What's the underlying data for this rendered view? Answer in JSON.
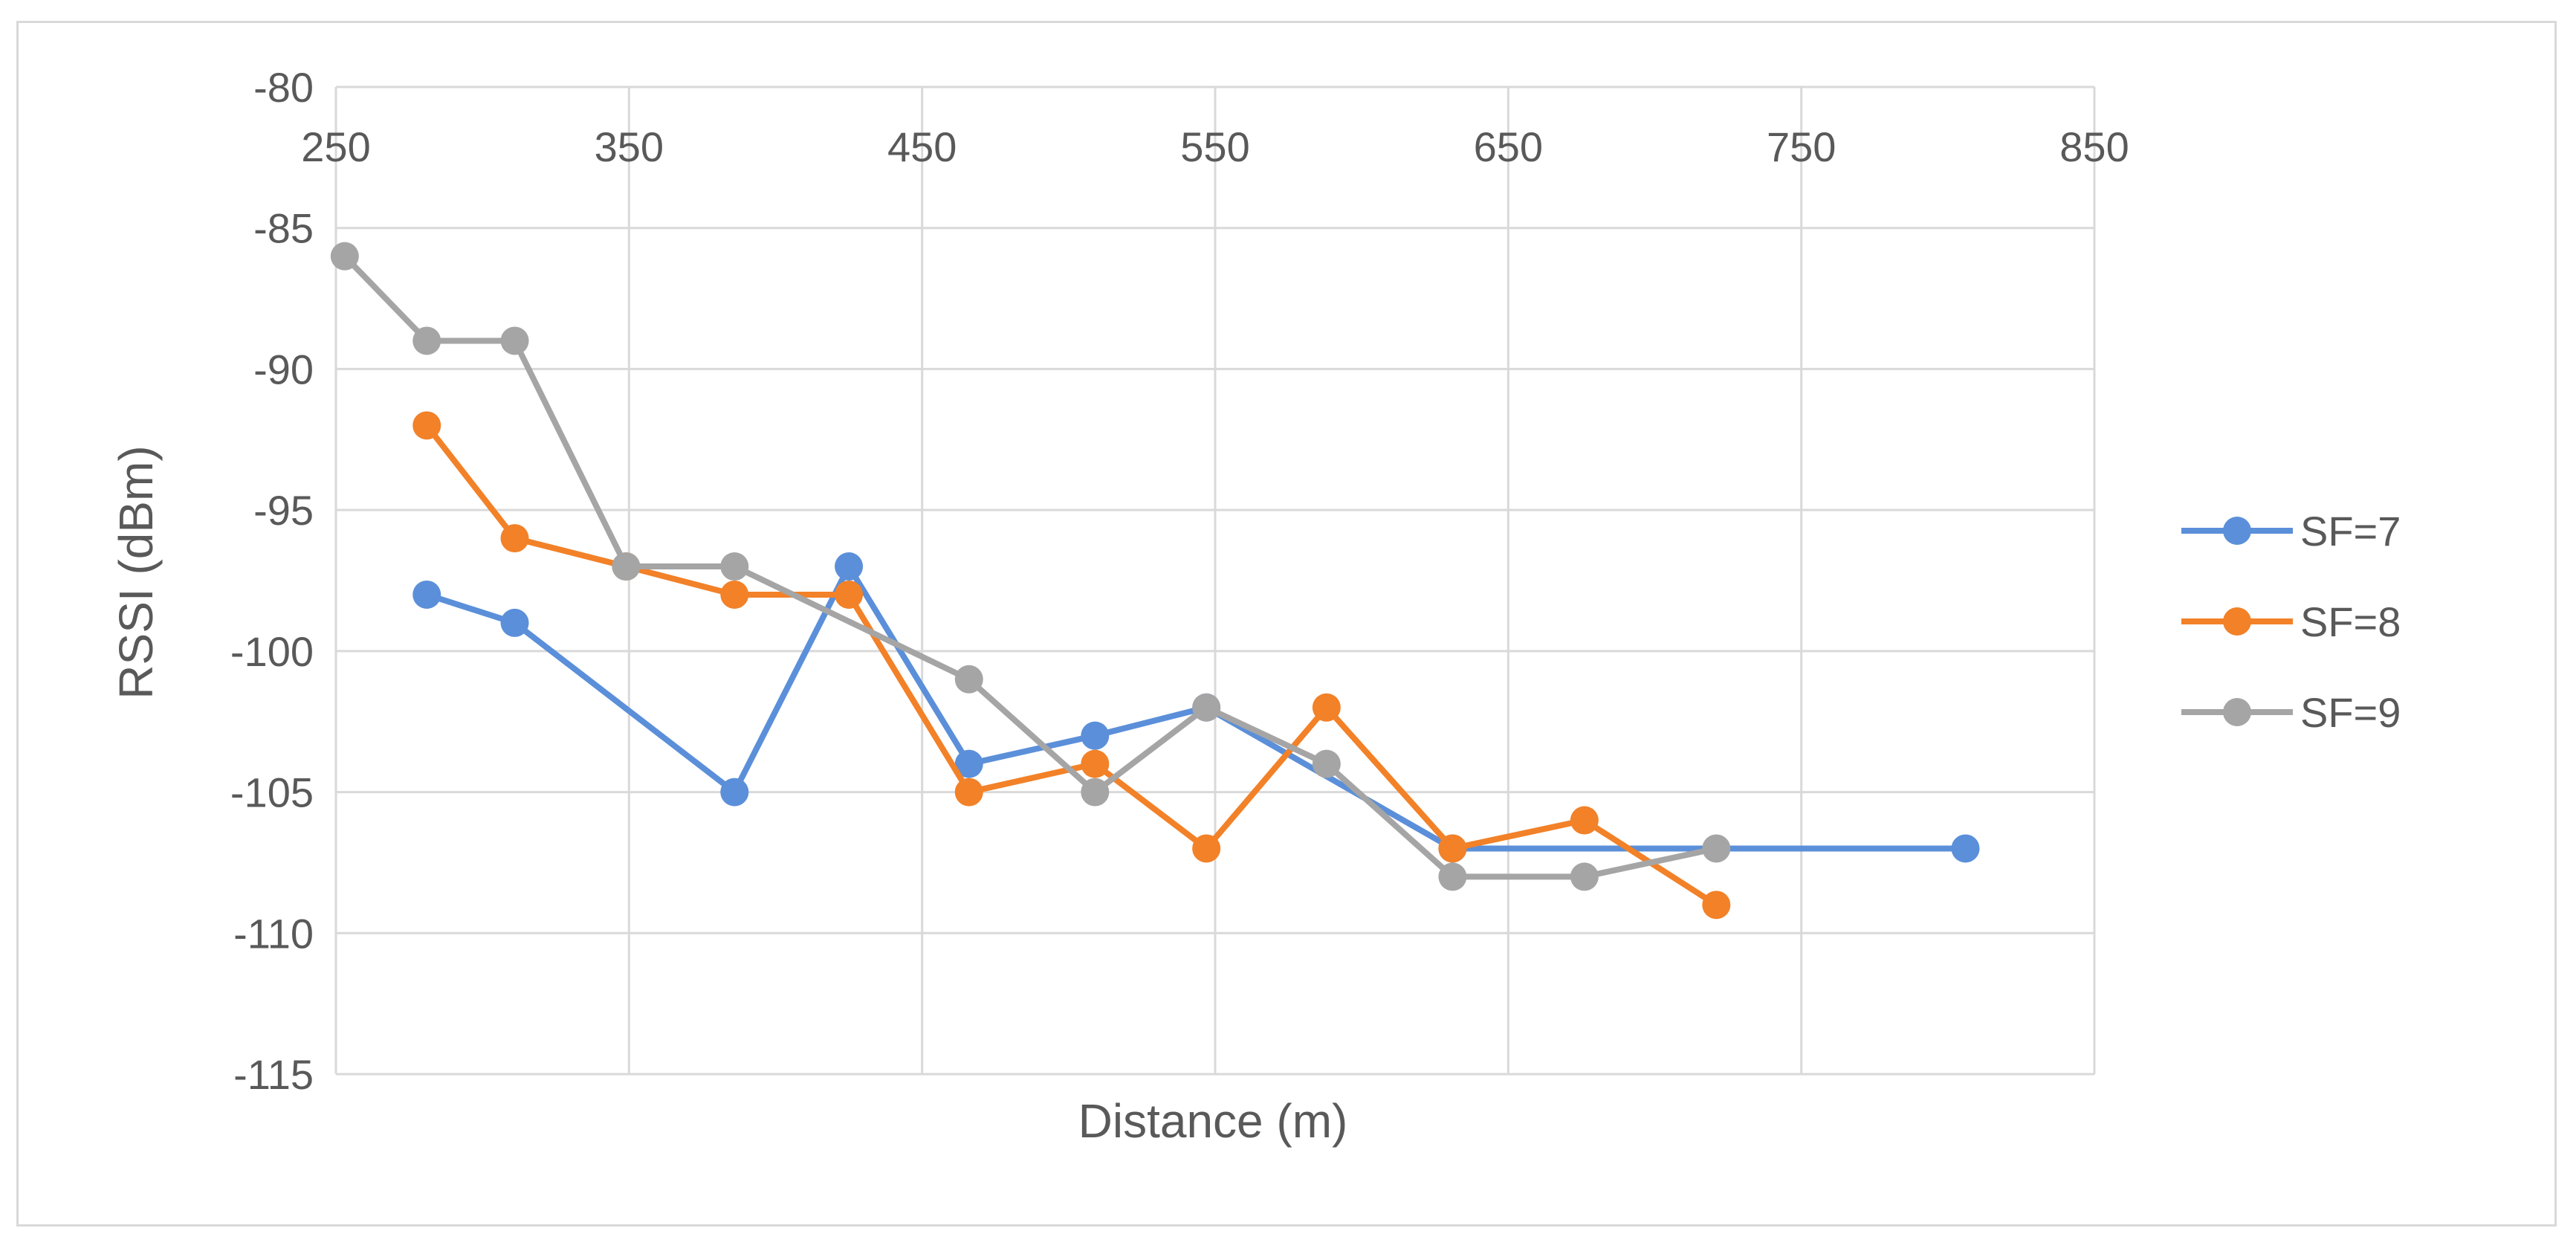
{
  "chart_data": {
    "type": "line",
    "title": "",
    "xlabel": "Distance (m)",
    "ylabel": "RSSI (dBm)",
    "xlim": [
      250,
      850
    ],
    "ylim": [
      -115,
      -80
    ],
    "x_ticks": [
      250,
      350,
      450,
      550,
      650,
      750,
      850
    ],
    "y_ticks": [
      -80,
      -85,
      -90,
      -95,
      -100,
      -105,
      -110,
      -115
    ],
    "x_tick_labels": [
      "250",
      "350",
      "450",
      "550",
      "650",
      "750",
      "850"
    ],
    "y_tick_labels": [
      "-80",
      "-85",
      "-90",
      "-95",
      "-100",
      "-105",
      "-110",
      "-115"
    ],
    "x_axis_position": "top",
    "grid": true,
    "legend_position": "right",
    "series": [
      {
        "name": "SF=7",
        "color": "#5b8fd9",
        "x": [
          281,
          311,
          386,
          425,
          466,
          509,
          547,
          631,
          806
        ],
        "y": [
          -98,
          -99,
          -105,
          -97,
          -104,
          -103,
          -102,
          -107,
          -107
        ]
      },
      {
        "name": "SF=8",
        "color": "#f28128",
        "x": [
          281,
          311,
          349,
          386,
          425,
          466,
          509,
          547,
          588,
          631,
          676,
          721
        ],
        "y": [
          -92,
          -96,
          -97,
          -98,
          -98,
          -105,
          -104,
          -107,
          -102,
          -107,
          -106,
          -109
        ]
      },
      {
        "name": "SF=9",
        "color": "#a5a5a5",
        "x": [
          253,
          281,
          311,
          349,
          386,
          466,
          509,
          547,
          588,
          631,
          676,
          721
        ],
        "y": [
          -86,
          -89,
          -89,
          -97,
          -97,
          -101,
          -105,
          -102,
          -104,
          -108,
          -108,
          -107
        ]
      }
    ]
  }
}
